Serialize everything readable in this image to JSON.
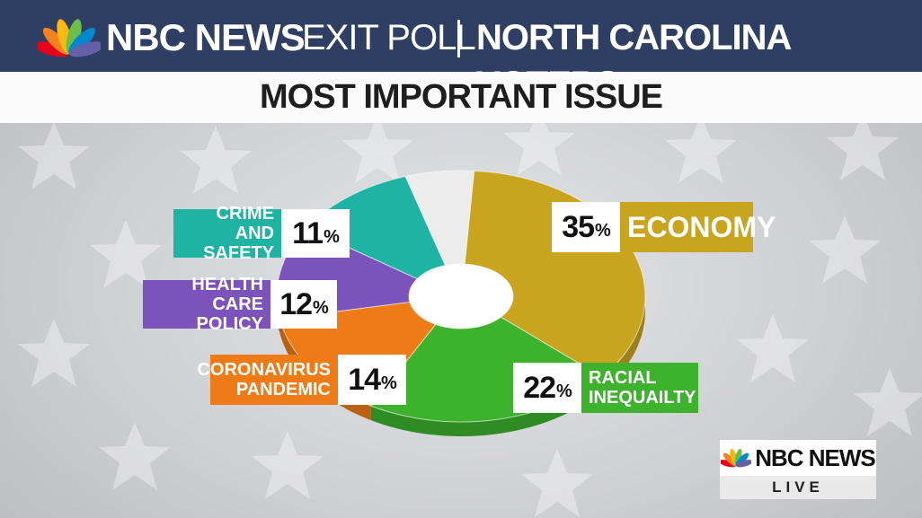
{
  "header": {
    "brand": "NBC NEWS",
    "poll": "EXIT POLL",
    "state": "NORTH CAROLINA VOTERS"
  },
  "title": "MOST IMPORTANT ISSUE",
  "chart_data": {
    "type": "pie",
    "title": "MOST IMPORTANT ISSUE",
    "categories": [
      "ECONOMY",
      "RACIAL INEQUAILTY",
      "CORONAVIRUS PANDEMIC",
      "HEALTH CARE POLICY",
      "CRIME AND SAFETY"
    ],
    "values": [
      35,
      22,
      14,
      12,
      11
    ],
    "value_labels": [
      "35",
      "22",
      "14",
      "12",
      "11"
    ],
    "unit": "%",
    "colors": [
      "#c9a41e",
      "#3cb22d",
      "#ef7b17",
      "#7c52bb",
      "#1fb3a3"
    ]
  },
  "labels": {
    "economy": "ECONOMY",
    "racial_1": "RACIAL",
    "racial_2": "INEQUAILTY",
    "corona_1": "CORONAVIRUS",
    "corona_2": "PANDEMIC",
    "health_1": "HEALTH CARE",
    "health_2": "POLICY",
    "crime_1": "CRIME AND",
    "crime_2": "SAFETY"
  },
  "live_badge": {
    "brand": "NBC NEWS",
    "status": "LIVE"
  }
}
